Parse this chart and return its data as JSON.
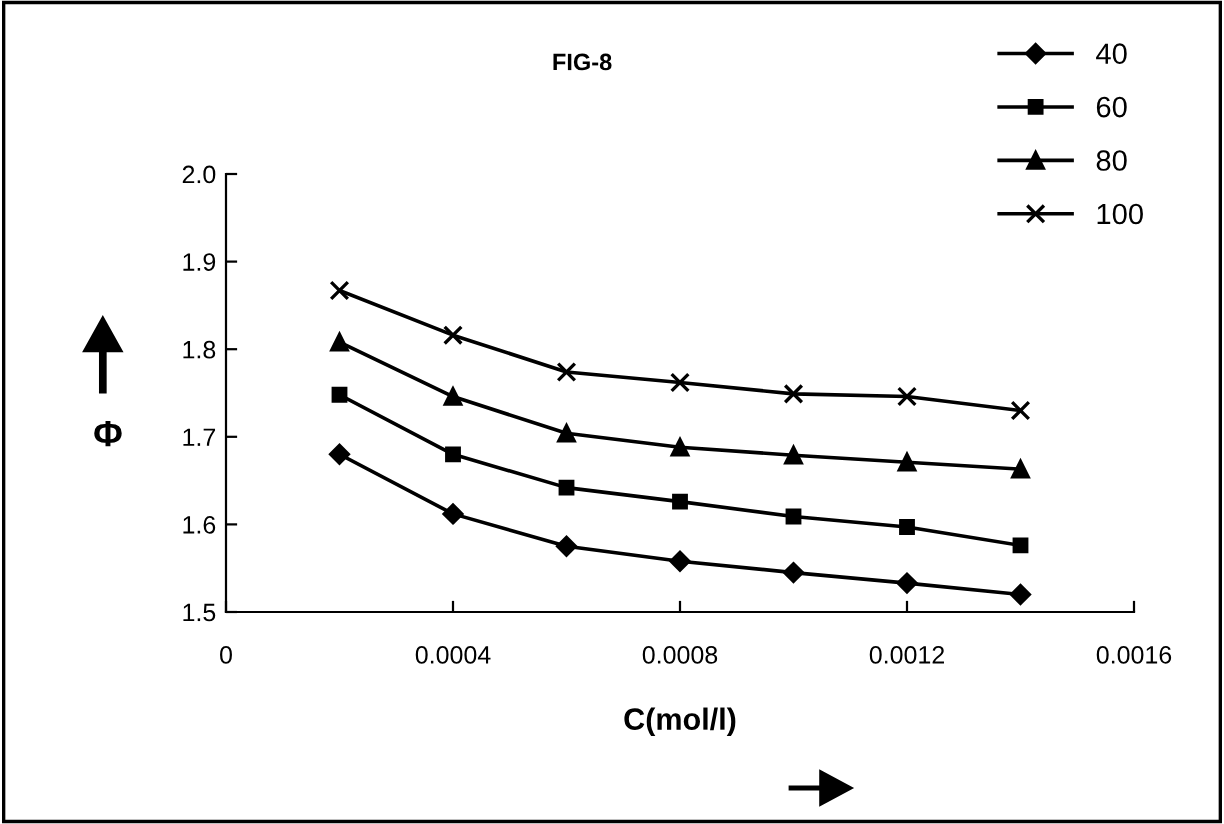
{
  "chart_data": {
    "type": "line",
    "title": "FIG-8",
    "xlabel": "C(mol/l)",
    "ylabel": "Φ",
    "x": [
      0.0002,
      0.0004,
      0.0006,
      0.0008,
      0.001,
      0.0012,
      0.0014
    ],
    "series": [
      {
        "name": "40",
        "color": "#000000",
        "marker": "diamond",
        "values": [
          1.68,
          1.612,
          1.575,
          1.558,
          1.545,
          1.533,
          1.52
        ]
      },
      {
        "name": "60",
        "color": "#000000",
        "marker": "square",
        "values": [
          1.748,
          1.68,
          1.642,
          1.626,
          1.609,
          1.597,
          1.576
        ]
      },
      {
        "name": "80",
        "color": "#000000",
        "marker": "triangle",
        "values": [
          1.808,
          1.746,
          1.704,
          1.688,
          1.679,
          1.671,
          1.663
        ]
      },
      {
        "name": "100",
        "color": "#000000",
        "marker": "cross",
        "values": [
          1.867,
          1.816,
          1.774,
          1.762,
          1.749,
          1.746,
          1.73
        ]
      }
    ],
    "xlim": [
      0,
      0.0016
    ],
    "xticks": [
      0,
      0.0004,
      0.0008,
      0.0012,
      0.0016
    ],
    "ylim": [
      1.5,
      2.0
    ],
    "yticks": [
      {
        "value": 1.5,
        "label": "1.5"
      },
      {
        "value": 1.6,
        "label": "1.6"
      },
      {
        "value": 1.7,
        "label": "1.7"
      },
      {
        "value": 1.8,
        "label": "1.8"
      },
      {
        "value": 1.9,
        "label": "1.9"
      },
      {
        "value": 2.0,
        "label": "2.0"
      }
    ],
    "grid": false,
    "legend": "top right",
    "line_style": "solid"
  }
}
